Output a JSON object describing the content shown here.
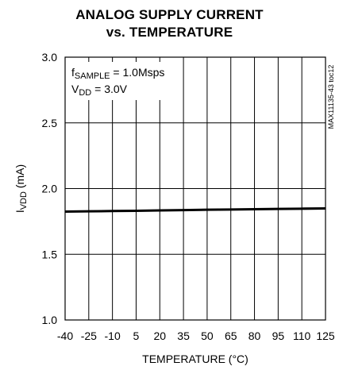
{
  "chart_data": {
    "type": "line",
    "title_line1": "ANALOG SUPPLY CURRENT",
    "title_line2": "vs. TEMPERATURE",
    "xlabel": "TEMPERATURE (°C)",
    "ylabel_main": "I",
    "ylabel_sub": "VDD",
    "ylabel_unit": " (mA)",
    "xlim": [
      -40,
      125
    ],
    "ylim": [
      1.0,
      3.0
    ],
    "x_ticks": [
      -40,
      -25,
      -10,
      5,
      20,
      35,
      50,
      65,
      80,
      95,
      110,
      125
    ],
    "x_tick_labels": [
      "-40",
      "-25",
      "-10",
      "5",
      "20",
      "35",
      "50",
      "65",
      "80",
      "95",
      "110",
      "125"
    ],
    "y_ticks": [
      1.0,
      1.5,
      2.0,
      2.5,
      3.0
    ],
    "y_tick_labels": [
      "1.0",
      "1.5",
      "2.0",
      "2.5",
      "3.0"
    ],
    "grid": true,
    "series": [
      {
        "x": [
          -40,
          -25,
          -10,
          5,
          20,
          35,
          50,
          65,
          80,
          95,
          110,
          125
        ],
        "y": [
          1.825,
          1.827,
          1.829,
          1.831,
          1.834,
          1.836,
          1.839,
          1.841,
          1.843,
          1.845,
          1.847,
          1.849
        ]
      }
    ],
    "annotation": {
      "line1_main": "f",
      "line1_sub": "SAMPLE",
      "line1_rest": " = 1.0Msps",
      "line2_main": "V",
      "line2_sub": "DD",
      "line2_rest": " = 3.0V"
    },
    "figure_code": "MAX11135-43 toc12"
  }
}
